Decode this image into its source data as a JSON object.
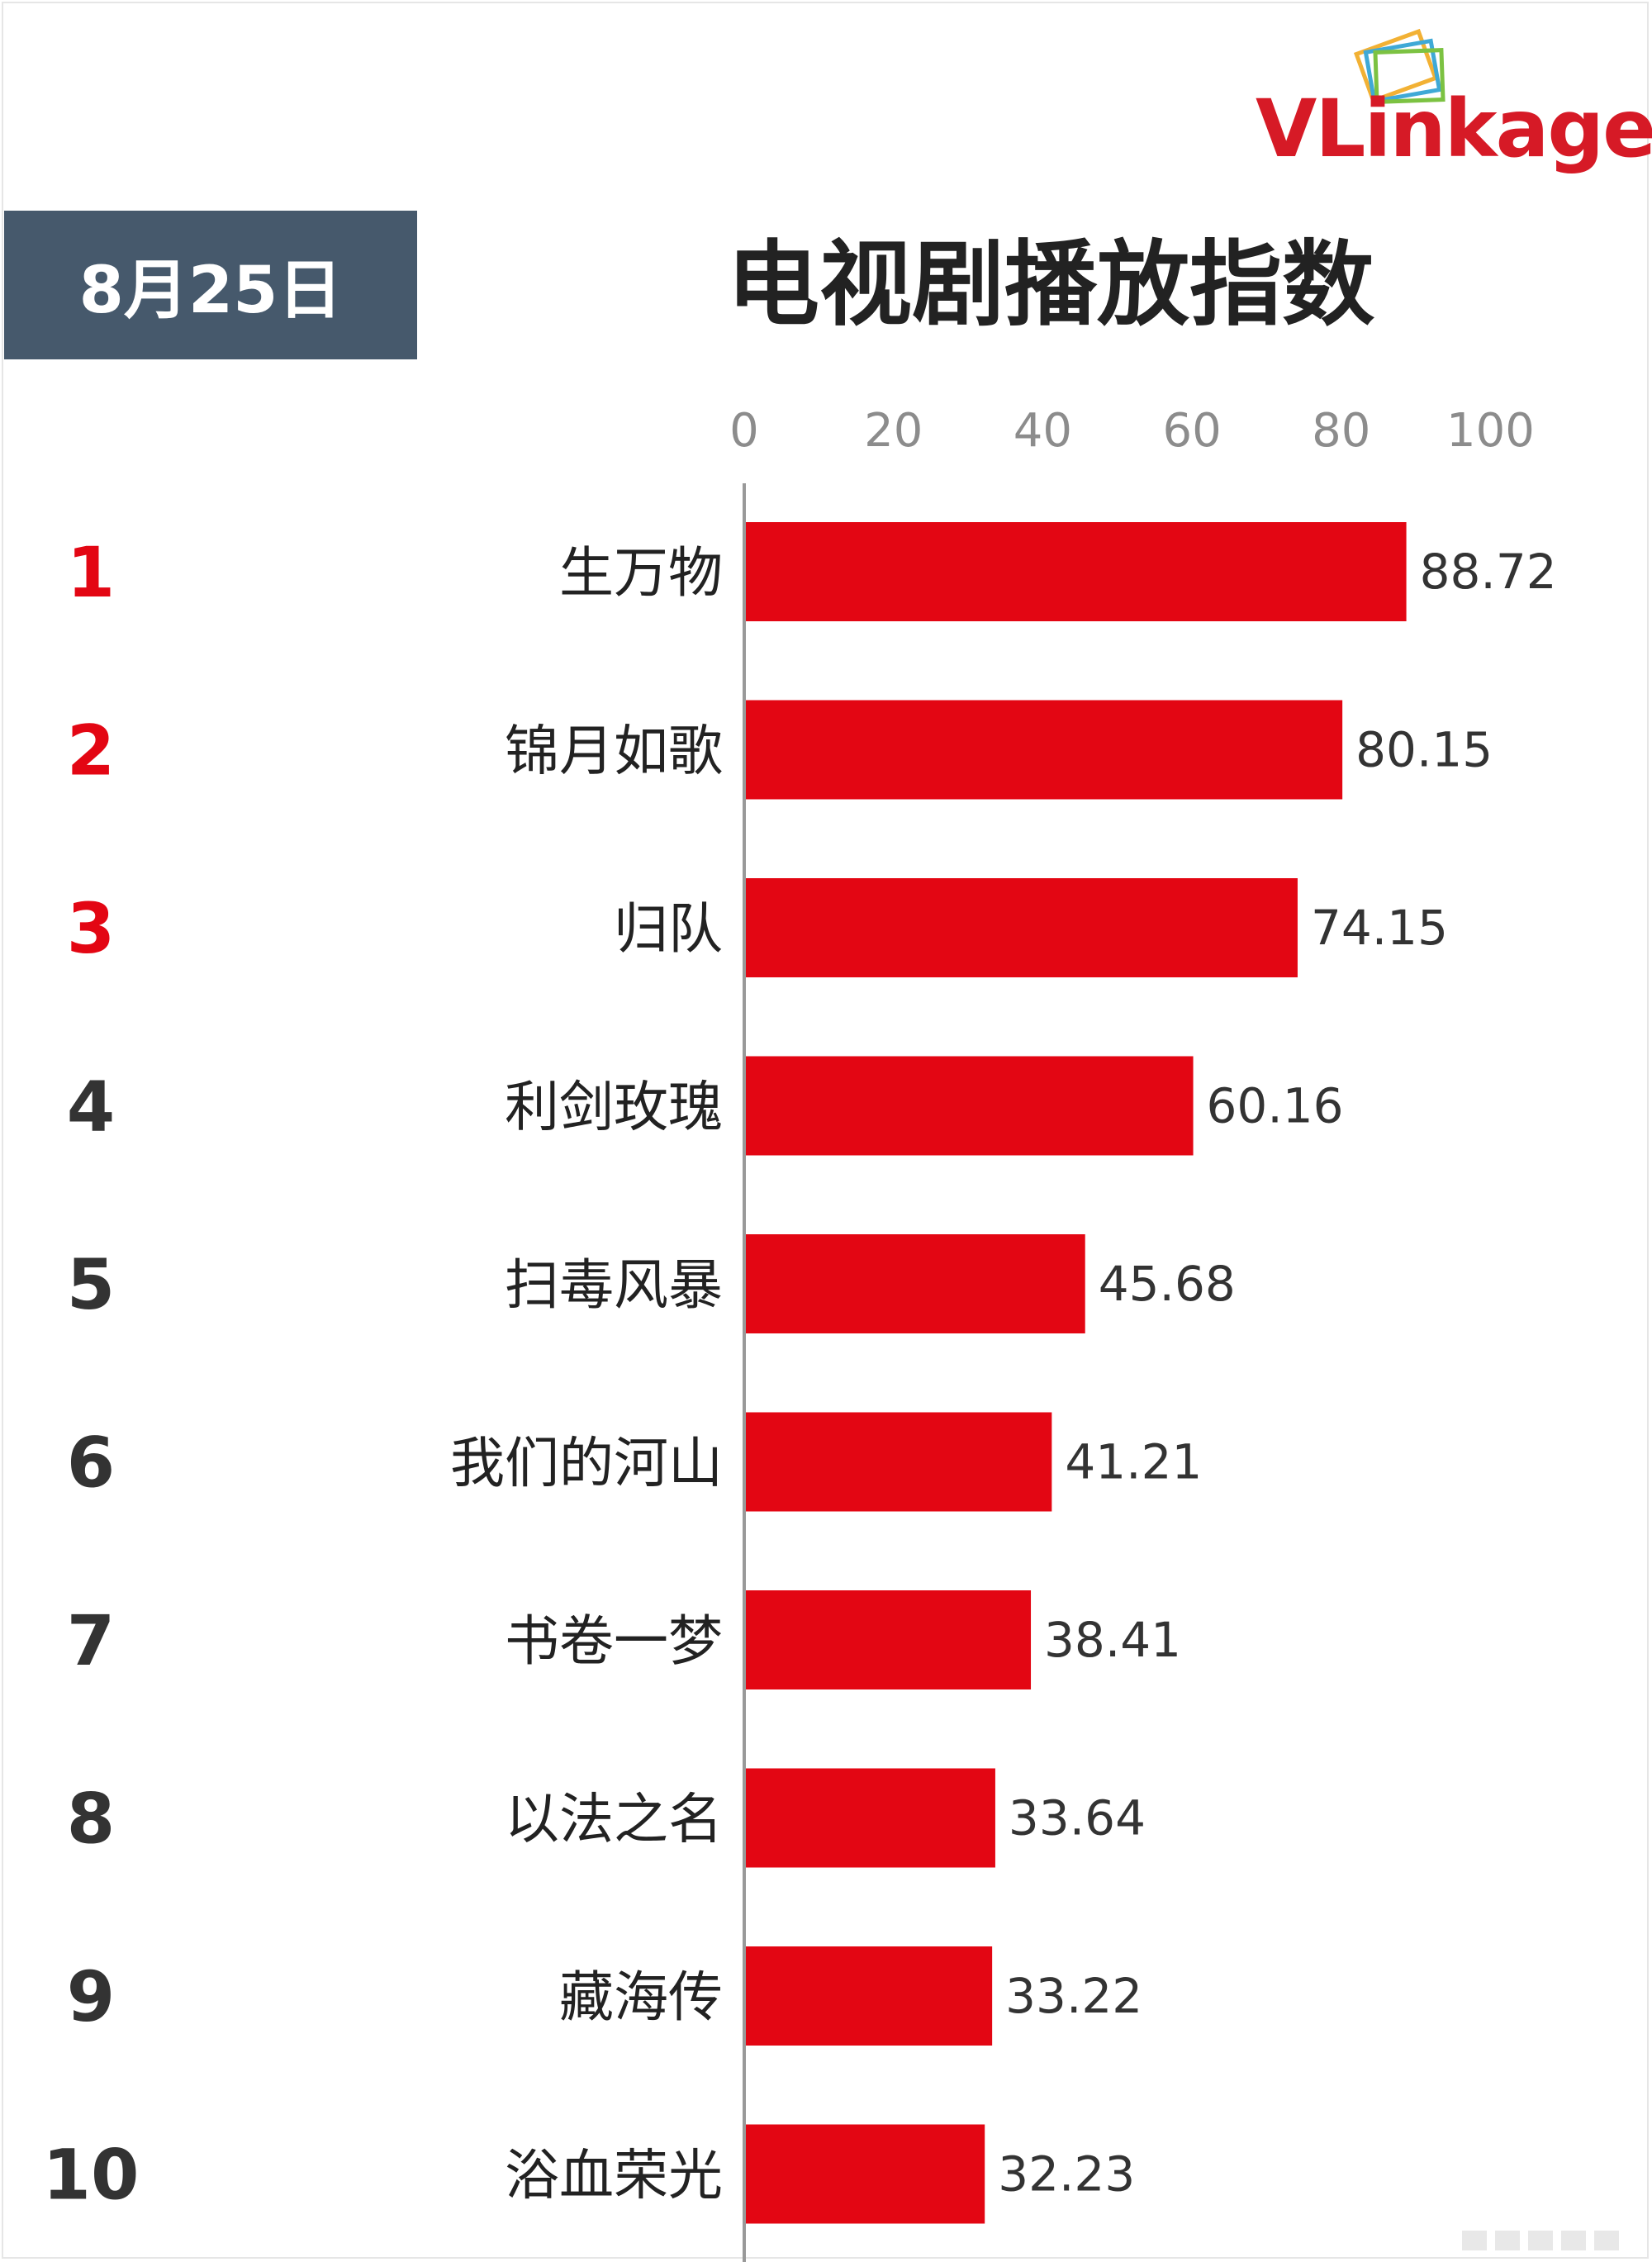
{
  "header": {
    "date": "8月25日",
    "title": "电视剧播放指数",
    "logo": {
      "text_prefix": "VLink",
      "text_suffix": "age",
      "prefix_color": "#d61a26",
      "suffix_color": "#d61a26"
    }
  },
  "colors": {
    "bar": "#e30613",
    "rank_top": "#e30613",
    "rank_other": "#333333",
    "axis": "#999999",
    "date_box": "#46596c"
  },
  "chart_data": {
    "type": "bar",
    "orientation": "horizontal",
    "title": "电视剧播放指数",
    "xlim": [
      0,
      100
    ],
    "x_ticks": [
      0,
      20,
      40,
      60,
      80,
      100
    ],
    "grid": false,
    "ranks": [
      "1",
      "2",
      "3",
      "4",
      "5",
      "6",
      "7",
      "8",
      "9",
      "10"
    ],
    "categories": [
      "生万物",
      "锦月如歌",
      "归队",
      "利剑玫瑰",
      "扫毒风暴",
      "我们的河山",
      "书卷一梦",
      "以法之名",
      "藏海传",
      "浴血荣光"
    ],
    "values": [
      88.72,
      80.15,
      74.15,
      60.16,
      45.68,
      41.21,
      38.41,
      33.64,
      33.22,
      32.23
    ],
    "value_labels": [
      "88.72",
      "80.15",
      "74.15",
      "60.16",
      "45.68",
      "41.21",
      "38.41",
      "33.64",
      "33.22",
      "32.23"
    ]
  }
}
